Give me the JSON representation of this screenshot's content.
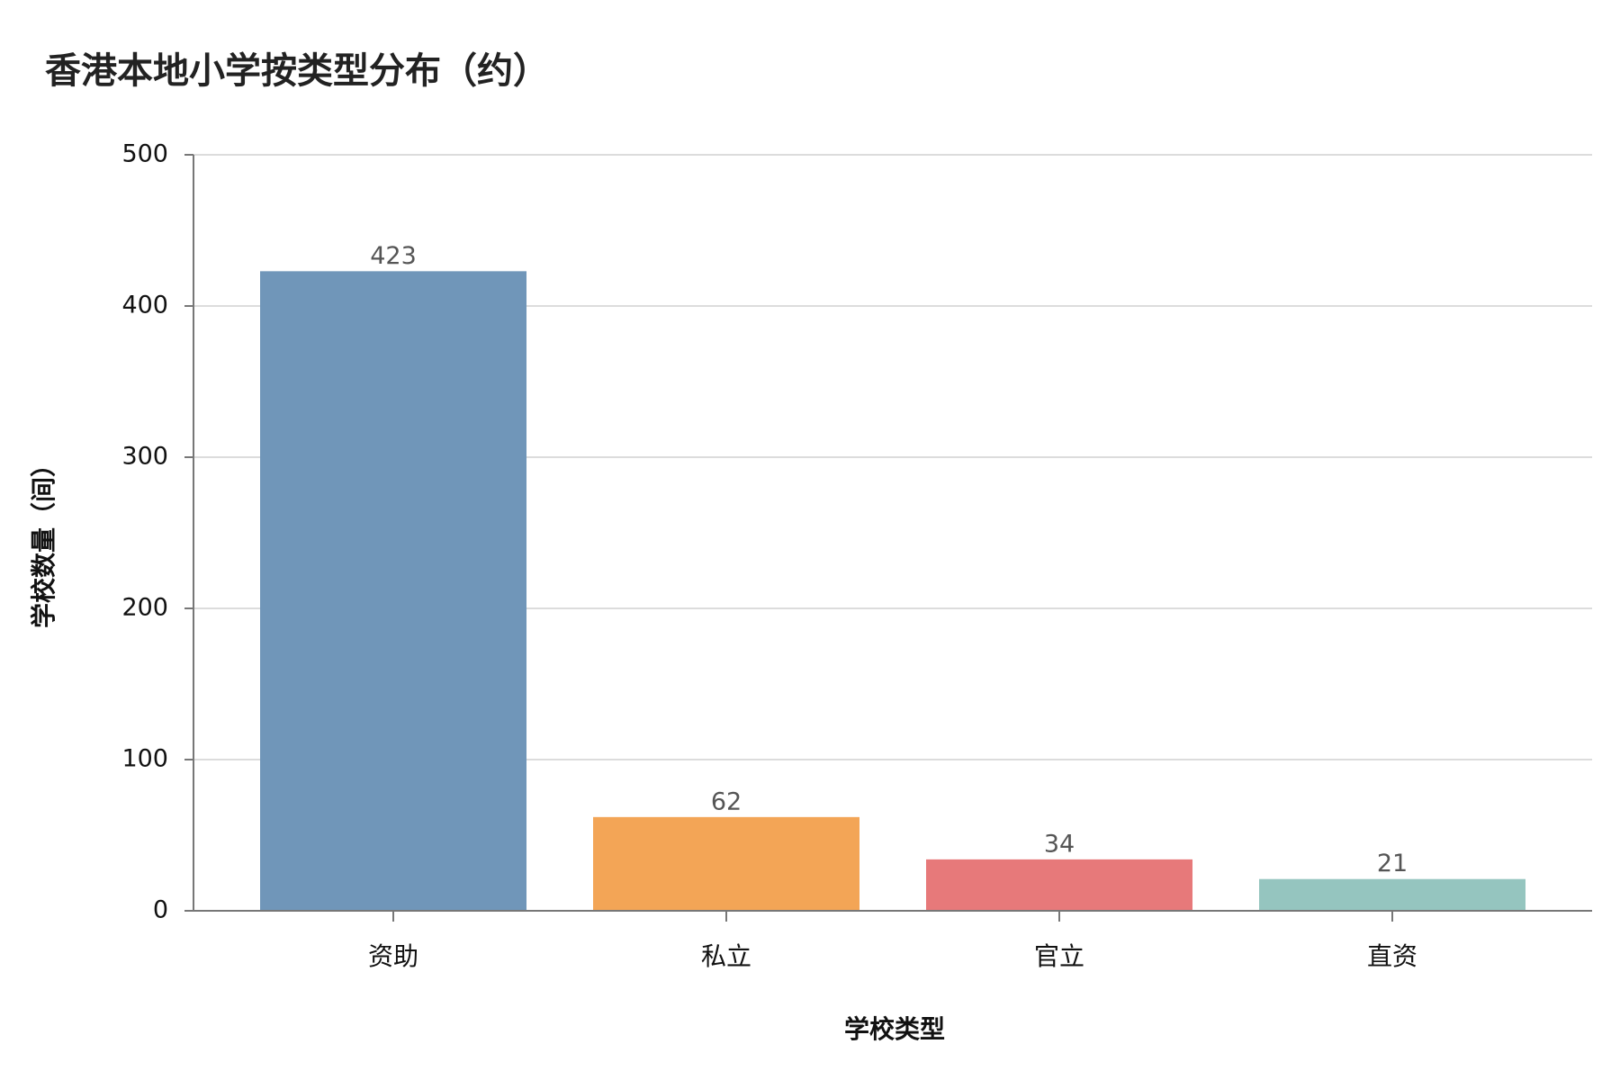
{
  "chart_data": {
    "type": "bar",
    "title": "香港本地小学按类型分布（约）",
    "x_label": "学校类型",
    "y_label": "学校数量（间）",
    "categories": [
      "资助",
      "私立",
      "官立",
      "直资"
    ],
    "values": [
      423,
      62,
      34,
      21
    ],
    "colors": [
      "#7096b9",
      "#f3a556",
      "#e7797a",
      "#95c5bf"
    ],
    "ylim": [
      0,
      500
    ],
    "yticks": [
      0,
      100,
      200,
      300,
      400,
      500
    ],
    "grid": true
  }
}
